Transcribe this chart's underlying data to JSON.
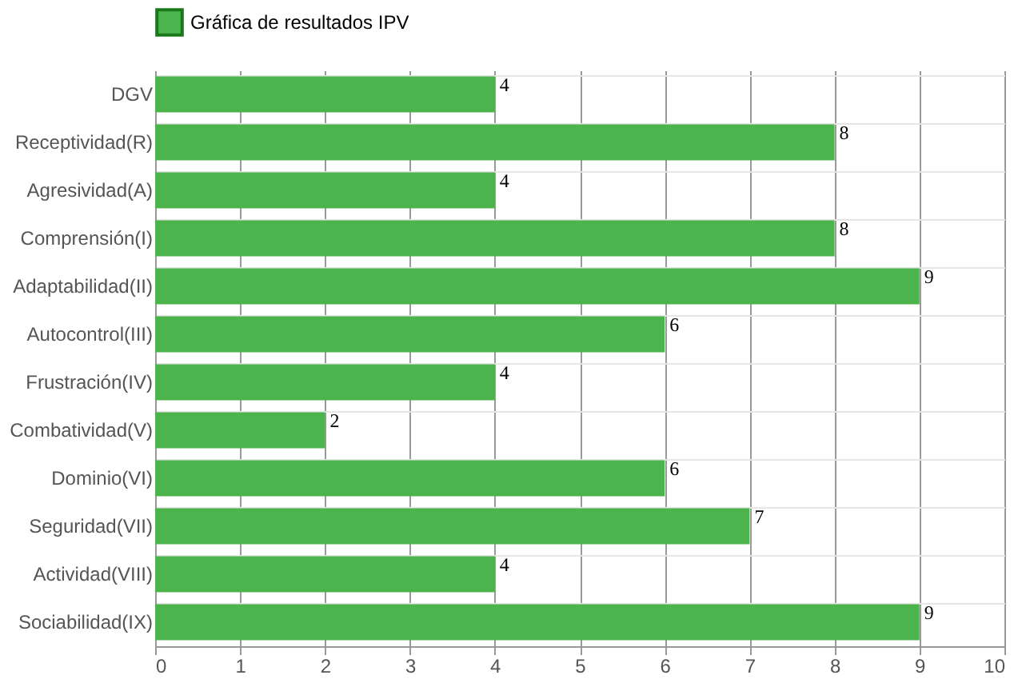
{
  "chart_data": {
    "type": "bar",
    "orientation": "horizontal",
    "categories": [
      "DGV",
      "Receptividad(R)",
      "Agresividad(A)",
      "Comprensión(I)",
      "Adaptabilidad(II)",
      "Autocontrol(III)",
      "Frustración(IV)",
      "Combatividad(V)",
      "Dominio(VI)",
      "Seguridad(VII)",
      "Actividad(VIII)",
      "Sociabilidad(IX)"
    ],
    "series": [
      {
        "name": "Gráfica de resultados IPV",
        "color": "#4db34d",
        "values": [
          4,
          8,
          4,
          8,
          9,
          6,
          4,
          2,
          6,
          7,
          4,
          9
        ]
      }
    ],
    "xlim": [
      0,
      10
    ],
    "xticks": [
      0,
      1,
      2,
      3,
      4,
      5,
      6,
      7,
      8,
      9,
      10
    ],
    "grid": true,
    "legend": "top",
    "data_labels": true
  }
}
